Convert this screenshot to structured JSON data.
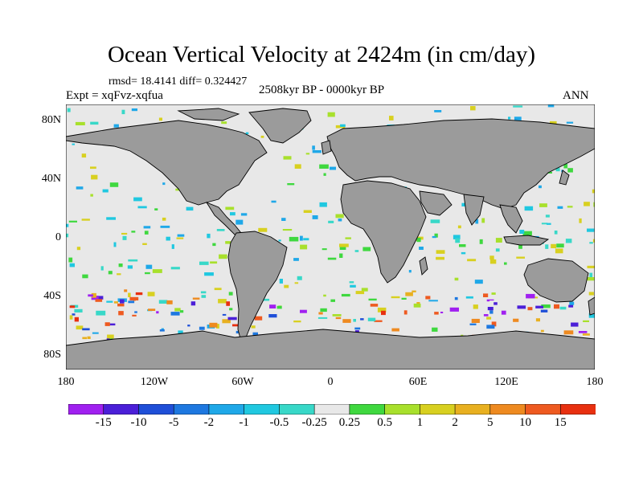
{
  "title": "Ocean Vertical Velocity at 2424m (in cm/day)",
  "stats": "rmsd= 18.4141 diff= 0.324427",
  "experiment": "Expt = xqFvz-xqfua",
  "period": "2508kyr BP - 0000kyr BP",
  "season": "ANN",
  "lat_ticks": [
    "80N",
    "40N",
    "0",
    "40S",
    "80S"
  ],
  "lon_ticks": [
    "180",
    "120W",
    "60W",
    "0",
    "60E",
    "120E",
    "180"
  ],
  "colorbar": {
    "labels": [
      "-15",
      "-10",
      "-5",
      "-2",
      "-1",
      "-0.5",
      "-0.25",
      "0.25",
      "0.5",
      "1",
      "2",
      "5",
      "10",
      "15"
    ],
    "colors": [
      "#a020f0",
      "#4b1fd8",
      "#1f4fd8",
      "#1e78e0",
      "#1fa8e8",
      "#20c8e0",
      "#38d8c8",
      "#e8e8e8",
      "#3fd83f",
      "#a8e02c",
      "#d8d020",
      "#e8b020",
      "#ee8a20",
      "#ee5a20",
      "#e83010"
    ]
  },
  "colors": {
    "land": "#9b9b9b",
    "neutral_ocean": "#e8e8e8",
    "coast": "#000000"
  }
}
